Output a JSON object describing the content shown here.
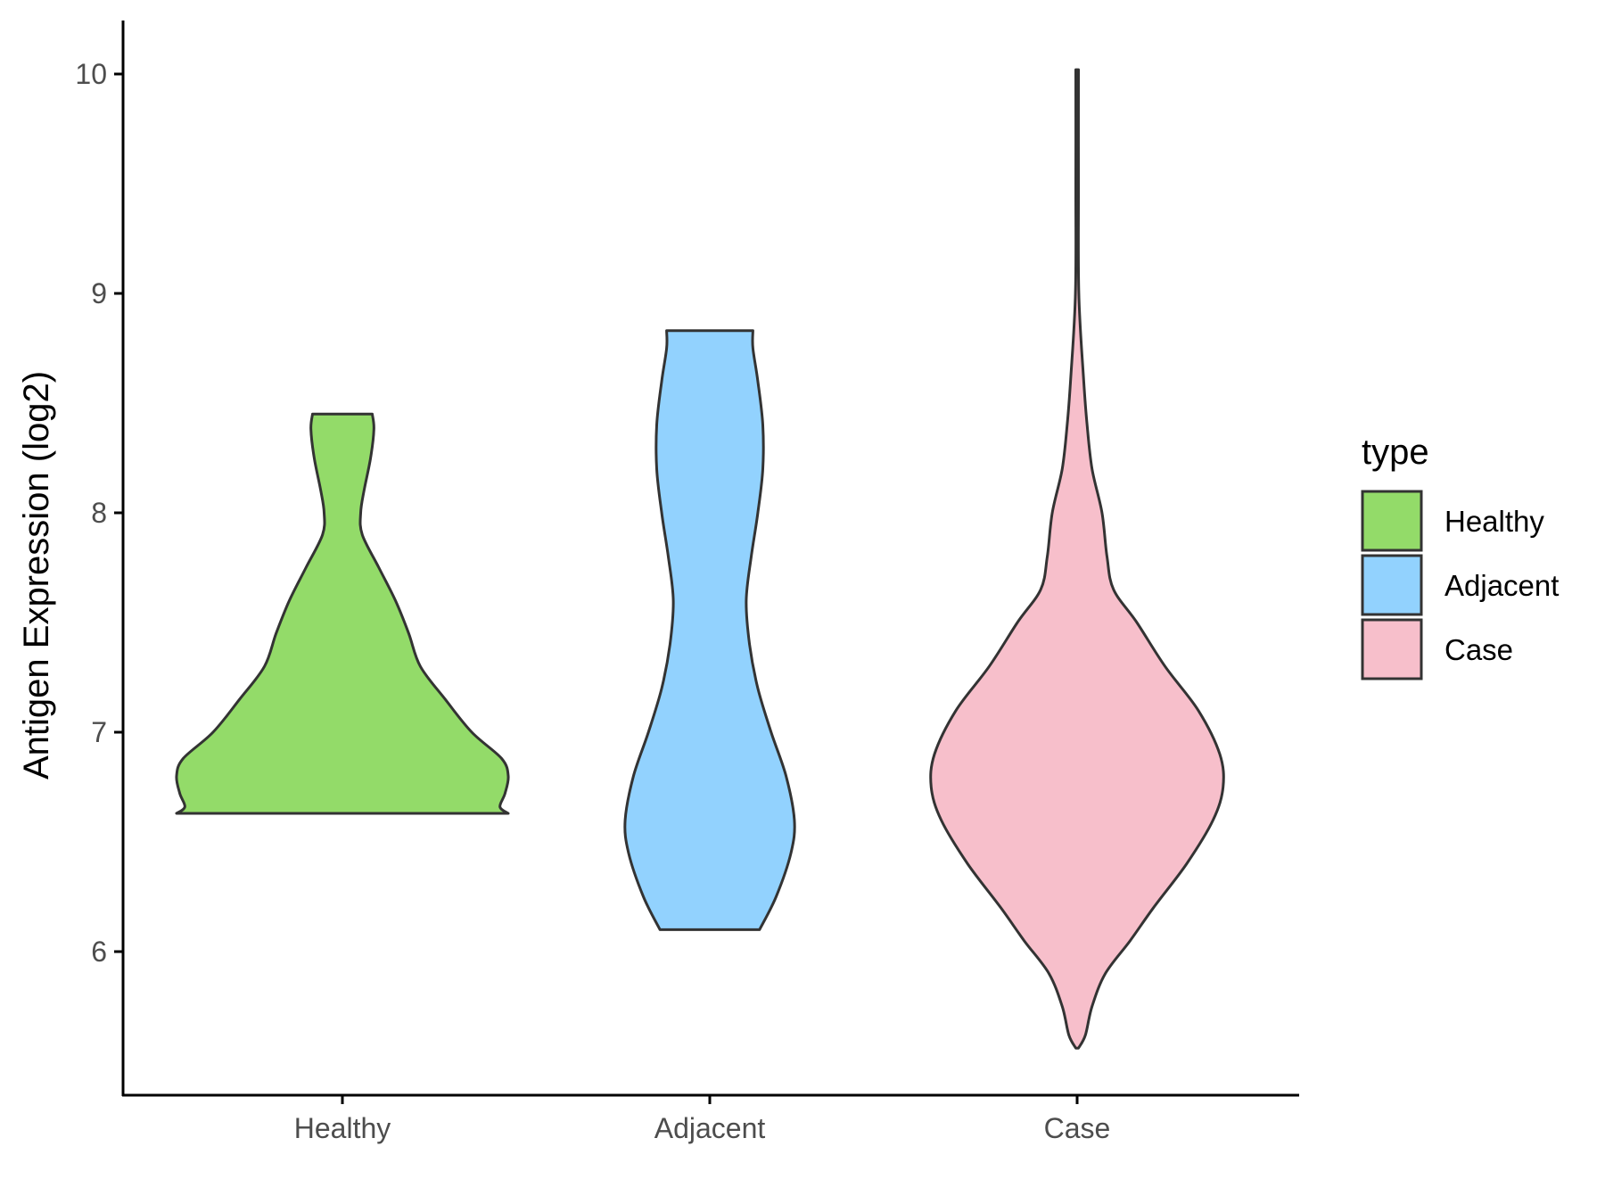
{
  "chart_data": {
    "type": "violin",
    "ylabel": "Antigen Expression (log2)",
    "xlabel": "",
    "ylim": [
      5.45,
      10.25
    ],
    "yticks": [
      6,
      7,
      8,
      9,
      10
    ],
    "ytick_labels": [
      "6",
      "7",
      "8",
      "9",
      "10"
    ],
    "categories": [
      "Healthy",
      "Adjacent",
      "Case"
    ],
    "legend": {
      "title": "type",
      "placement": "right",
      "entries": [
        "Healthy",
        "Adjacent",
        "Case"
      ]
    },
    "grid": false,
    "series": [
      {
        "name": "Healthy",
        "color": "#93DB69",
        "min": 6.63,
        "max": 8.45,
        "density": [
          [
            6.63,
            1.0
          ],
          [
            6.66,
            0.95
          ],
          [
            6.72,
            0.98
          ],
          [
            6.8,
            1.0
          ],
          [
            6.88,
            0.96
          ],
          [
            7.0,
            0.78
          ],
          [
            7.15,
            0.62
          ],
          [
            7.3,
            0.47
          ],
          [
            7.45,
            0.4
          ],
          [
            7.6,
            0.32
          ],
          [
            7.75,
            0.22
          ],
          [
            7.9,
            0.12
          ],
          [
            8.0,
            0.11
          ],
          [
            8.1,
            0.13
          ],
          [
            8.25,
            0.17
          ],
          [
            8.38,
            0.19
          ],
          [
            8.45,
            0.18
          ]
        ]
      },
      {
        "name": "Adjacent",
        "color": "#92D2FE",
        "min": 6.1,
        "max": 8.83,
        "density": [
          [
            6.1,
            0.3
          ],
          [
            6.25,
            0.4
          ],
          [
            6.45,
            0.49
          ],
          [
            6.6,
            0.51
          ],
          [
            6.8,
            0.46
          ],
          [
            7.0,
            0.37
          ],
          [
            7.2,
            0.29
          ],
          [
            7.4,
            0.24
          ],
          [
            7.6,
            0.22
          ],
          [
            7.8,
            0.25
          ],
          [
            8.0,
            0.29
          ],
          [
            8.2,
            0.32
          ],
          [
            8.4,
            0.32
          ],
          [
            8.6,
            0.29
          ],
          [
            8.75,
            0.26
          ],
          [
            8.83,
            0.26
          ]
        ]
      },
      {
        "name": "Case",
        "color": "#F7BFCB",
        "min": 5.56,
        "max": 10.02,
        "density": [
          [
            5.56,
            0.0
          ],
          [
            5.62,
            0.05
          ],
          [
            5.75,
            0.09
          ],
          [
            5.9,
            0.17
          ],
          [
            6.05,
            0.32
          ],
          [
            6.2,
            0.46
          ],
          [
            6.4,
            0.66
          ],
          [
            6.6,
            0.82
          ],
          [
            6.75,
            0.88
          ],
          [
            6.9,
            0.86
          ],
          [
            7.1,
            0.73
          ],
          [
            7.3,
            0.53
          ],
          [
            7.5,
            0.36
          ],
          [
            7.65,
            0.22
          ],
          [
            7.8,
            0.18
          ],
          [
            8.0,
            0.15
          ],
          [
            8.2,
            0.09
          ],
          [
            8.4,
            0.06
          ],
          [
            8.6,
            0.04
          ],
          [
            9.0,
            0.01
          ],
          [
            9.5,
            0.006
          ],
          [
            10.02,
            0.006
          ]
        ]
      }
    ]
  }
}
